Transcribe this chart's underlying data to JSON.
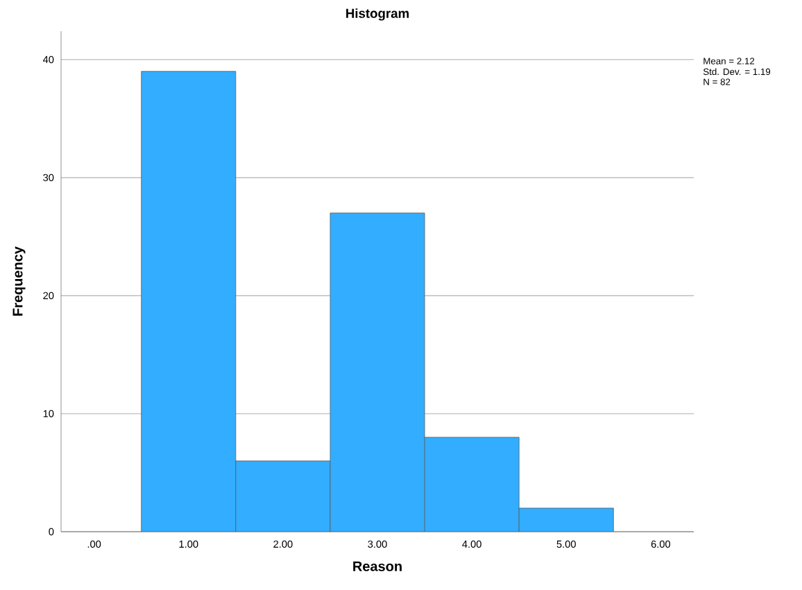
{
  "chart_data": {
    "type": "histogram",
    "title": "Histogram",
    "xlabel": "Reason",
    "ylabel": "Frequency",
    "bins": [
      0.5,
      1.5,
      2.5,
      3.5,
      4.5,
      5.5
    ],
    "values": [
      39,
      6,
      27,
      8,
      2
    ],
    "color": "#33adff",
    "xlim": [
      -0.35,
      6.35
    ],
    "ylim": [
      0,
      42.4
    ],
    "xticks": [
      {
        "value": 0,
        "label": ".00"
      },
      {
        "value": 1,
        "label": "1.00"
      },
      {
        "value": 2,
        "label": "2.00"
      },
      {
        "value": 3,
        "label": "3.00"
      },
      {
        "value": 4,
        "label": "4.00"
      },
      {
        "value": 5,
        "label": "5.00"
      },
      {
        "value": 6,
        "label": "6.00"
      }
    ],
    "yticks": [
      0,
      10,
      20,
      30,
      40
    ],
    "grid": "y",
    "annotations": [
      "Mean = 2.12",
      "Std. Dev. = 1.19",
      "N = 82"
    ]
  }
}
